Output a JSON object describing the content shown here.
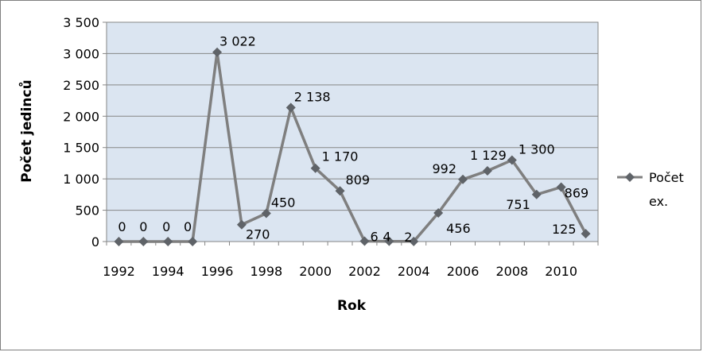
{
  "chart_data": {
    "type": "line",
    "title": "",
    "xlabel": "Rok",
    "ylabel": "Počet jedinců",
    "ylim": [
      0,
      3500
    ],
    "yticks": [
      "0",
      "500",
      "1 000",
      "1 500",
      "2 000",
      "2 500",
      "3 000",
      "3 500"
    ],
    "xtick_labels": [
      "1992",
      "1994",
      "1996",
      "1998",
      "2000",
      "2002",
      "2004",
      "2006",
      "2008",
      "2010"
    ],
    "grid": "horizontal",
    "legend_position": "right",
    "series": [
      {
        "name": "Počet ex.",
        "color": "#7f7f7f",
        "x": [
          1992,
          1993,
          1994,
          1995,
          1996,
          1997,
          1998,
          1999,
          2000,
          2001,
          2002,
          2003,
          2004,
          2005,
          2006,
          2007,
          2008,
          2009,
          2010,
          2011
        ],
        "values": [
          0,
          0,
          0,
          0,
          3022,
          270,
          450,
          2138,
          1170,
          809,
          6,
          4,
          2,
          456,
          992,
          1129,
          1300,
          751,
          869,
          125
        ],
        "labels": [
          "0",
          "0",
          "0",
          "0",
          "3 022",
          "270",
          "450",
          "2 138",
          "1 170",
          "809",
          "6",
          "4",
          "2",
          "456",
          "992",
          "1 129",
          "1 300",
          "751",
          "869",
          "125"
        ]
      }
    ]
  },
  "legend": {
    "line1": "Počet",
    "line2": "ex."
  }
}
